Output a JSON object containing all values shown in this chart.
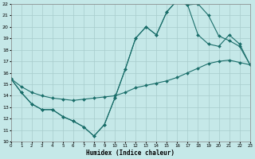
{
  "xlabel": "Humidex (Indice chaleur)",
  "bg_color": "#c5e8e8",
  "line_color": "#1a6e6a",
  "grid_color": "#a8cccc",
  "xlim": [
    0,
    23
  ],
  "ylim": [
    10,
    22
  ],
  "xtick_labels": [
    "0",
    "1",
    "2",
    "3",
    "4",
    "5",
    "6",
    "7",
    "8",
    "9",
    "10",
    "11",
    "12",
    "13",
    "14",
    "15",
    "16",
    "17",
    "18",
    "19",
    "20",
    "21",
    "22",
    "23"
  ],
  "ytick_labels": [
    "10",
    "11",
    "12",
    "13",
    "14",
    "15",
    "16",
    "17",
    "18",
    "19",
    "20",
    "21",
    "22"
  ],
  "series": [
    {
      "x": [
        0,
        1,
        2,
        3,
        4,
        5,
        6,
        7,
        8,
        9,
        10,
        11,
        12,
        13,
        14,
        15,
        16,
        17,
        18,
        19,
        20,
        21,
        22,
        23
      ],
      "y": [
        15.5,
        14.3,
        13.3,
        12.8,
        12.8,
        12.2,
        11.8,
        11.3,
        10.5,
        11.5,
        13.8,
        16.3,
        19.0,
        20.0,
        19.3,
        21.3,
        22.3,
        21.9,
        19.3,
        18.5,
        18.3,
        19.3,
        18.5,
        16.7
      ]
    },
    {
      "x": [
        0,
        1,
        2,
        3,
        4,
        5,
        6,
        7,
        8,
        9,
        10,
        11,
        12,
        13,
        14,
        15,
        16,
        17,
        18,
        19,
        20,
        21,
        22,
        23
      ],
      "y": [
        15.5,
        14.8,
        14.3,
        14.0,
        13.8,
        13.7,
        13.6,
        13.7,
        13.8,
        13.9,
        14.0,
        14.3,
        14.7,
        14.9,
        15.1,
        15.3,
        15.6,
        16.0,
        16.4,
        16.8,
        17.0,
        17.1,
        16.9,
        16.7
      ]
    },
    {
      "x": [
        0,
        1,
        2,
        3,
        4,
        5,
        6,
        7,
        8,
        9,
        10,
        11,
        12,
        13,
        14,
        15,
        16,
        17,
        18,
        19,
        20,
        21,
        22,
        23
      ],
      "y": [
        15.5,
        14.3,
        13.3,
        12.8,
        12.8,
        12.2,
        11.8,
        11.3,
        10.5,
        11.5,
        13.8,
        16.3,
        19.0,
        20.0,
        19.3,
        21.3,
        22.3,
        21.9,
        22.0,
        21.0,
        19.2,
        18.8,
        18.3,
        16.7
      ]
    }
  ]
}
